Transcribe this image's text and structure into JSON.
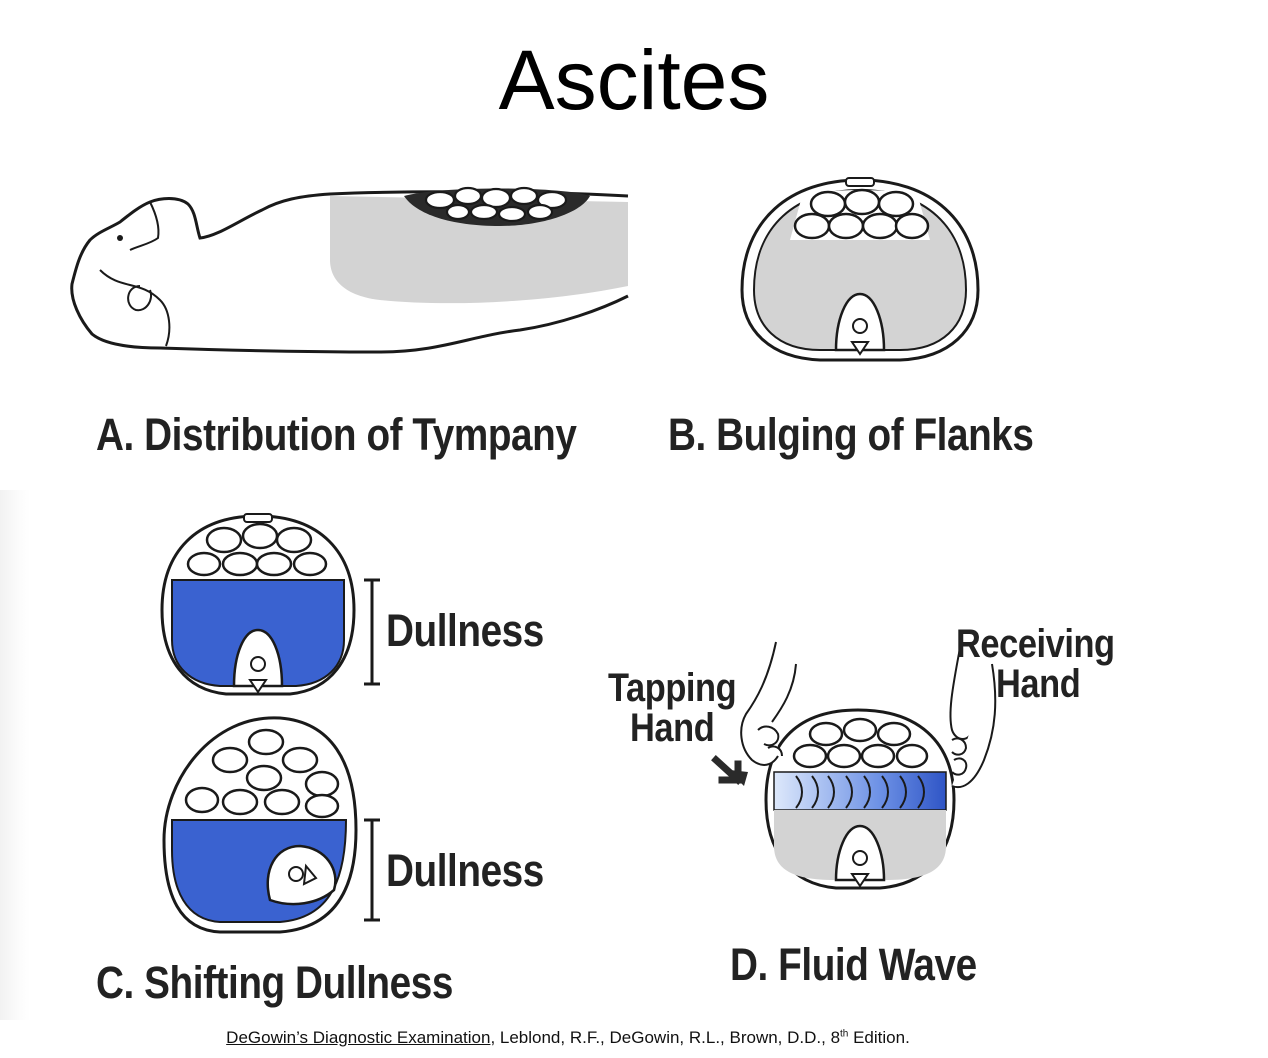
{
  "title": "Ascites",
  "panels": {
    "a": {
      "caption": "A. Distribution of Tympany"
    },
    "b": {
      "caption": "B. Bulging of Flanks"
    },
    "c": {
      "caption": "C. Shifting Dullness",
      "dullness_top": "Dullness",
      "dullness_bottom": "Dullness"
    },
    "d": {
      "caption": "D. Fluid Wave",
      "tapping_1": "Tapping",
      "tapping_2": "Hand",
      "receiving_1": "Receiving",
      "receiving_2": "Hand"
    }
  },
  "citation": {
    "book": "DeGowin’s Diagnostic Examination",
    "authors": ", Leblond, R.F., DeGowin, R.L., Brown, D.D., 8",
    "edition_sup": "th",
    "edition_rest": " Edition."
  },
  "colors": {
    "fluid_blue": "#3a62d0",
    "fluid_gray": "#d3d3d3",
    "outline": "#1a1a1a"
  }
}
